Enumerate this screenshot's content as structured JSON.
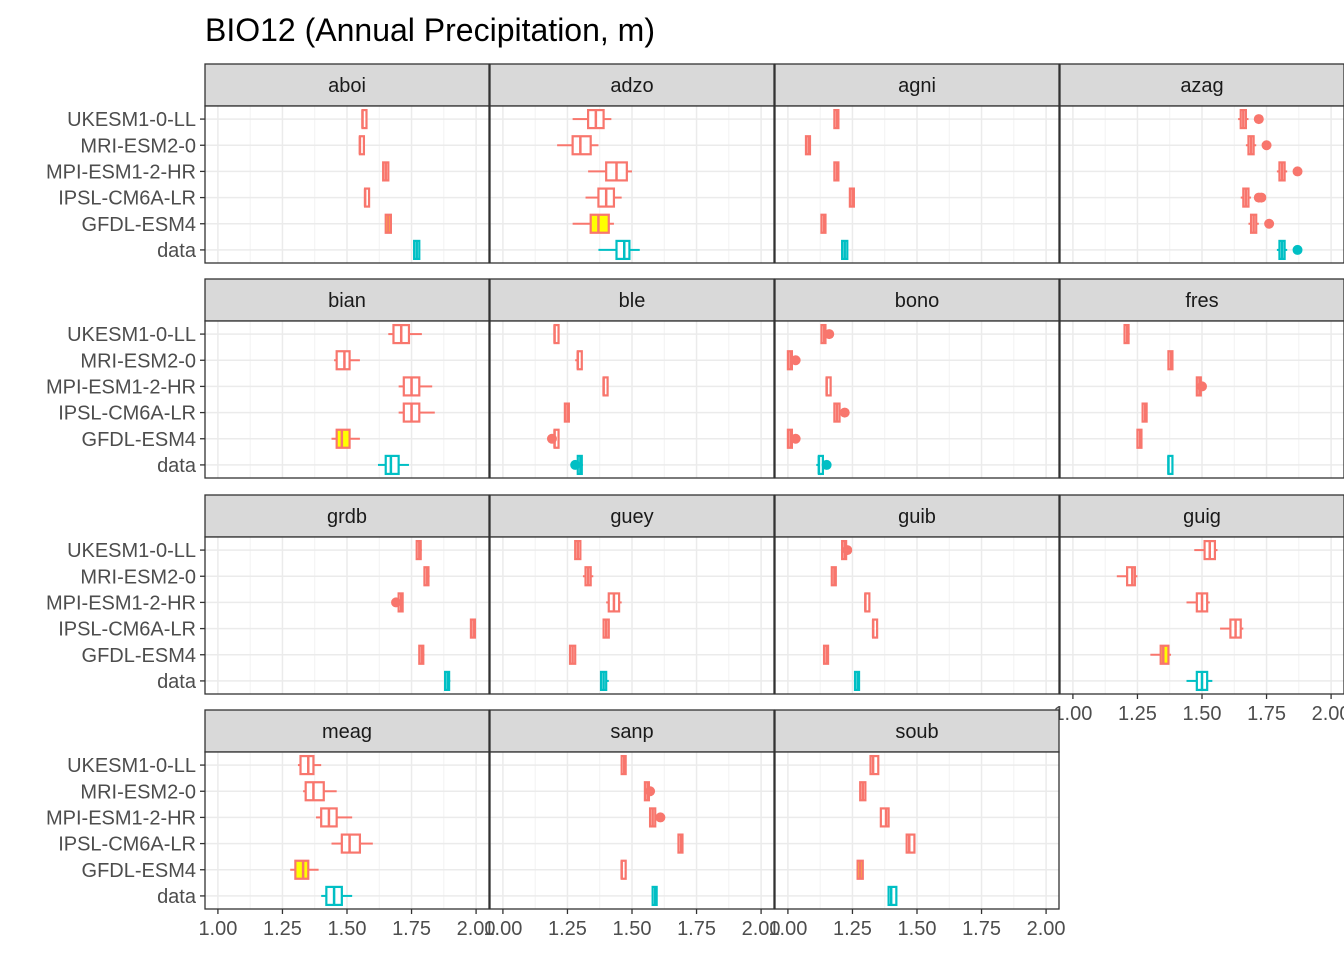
{
  "chart_data": {
    "type": "boxplot",
    "title": "BIO12 (Annual Precipitation, m)",
    "xlabel": "",
    "ylabel": "",
    "xlim": [
      0.95,
      2.05
    ],
    "xticks": [
      1.0,
      1.25,
      1.5,
      1.75,
      2.0
    ],
    "xtick_labels": [
      "1.00",
      "1.25",
      "1.50",
      "1.75",
      "2.00"
    ],
    "categories": [
      "UKESM1-0-LL",
      "MRI-ESM2-0",
      "MPI-ESM1-2-HR",
      "IPSL-CM6A-LR",
      "GFDL-ESM4",
      "data"
    ],
    "grid": true,
    "colors": {
      "model": "#F8766D",
      "data": "#00BFC4",
      "highlight": "#FFFF00"
    },
    "panels": [
      {
        "name": "aboi",
        "boxes": [
          [
            1.56,
            1.56,
            1.56,
            1.57,
            1.57
          ],
          [
            1.55,
            1.55,
            1.55,
            1.56,
            1.56
          ],
          [
            1.64,
            1.64,
            1.65,
            1.66,
            1.66
          ],
          [
            1.57,
            1.57,
            1.57,
            1.58,
            1.58
          ],
          [
            1.65,
            1.65,
            1.66,
            1.67,
            1.67
          ],
          [
            1.76,
            1.76,
            1.77,
            1.78,
            1.78
          ]
        ],
        "outliers": [
          [],
          [],
          [],
          [],
          [],
          []
        ],
        "highlight": [
          false,
          false,
          false,
          false,
          true,
          false
        ]
      },
      {
        "name": "adzo",
        "boxes": [
          [
            1.27,
            1.33,
            1.36,
            1.39,
            1.42
          ],
          [
            1.21,
            1.27,
            1.3,
            1.34,
            1.37
          ],
          [
            1.33,
            1.4,
            1.44,
            1.48,
            1.5
          ],
          [
            1.32,
            1.37,
            1.4,
            1.43,
            1.46
          ],
          [
            1.27,
            1.34,
            1.37,
            1.41,
            1.43
          ],
          [
            1.37,
            1.44,
            1.47,
            1.49,
            1.53
          ]
        ],
        "outliers": [
          [],
          [],
          [],
          [],
          [],
          []
        ],
        "highlight": [
          false,
          false,
          false,
          false,
          true,
          false
        ]
      },
      {
        "name": "agni",
        "boxes": [
          [
            1.18,
            1.18,
            1.19,
            1.19,
            1.19
          ],
          [
            1.07,
            1.07,
            1.08,
            1.08,
            1.08
          ],
          [
            1.18,
            1.18,
            1.19,
            1.19,
            1.19
          ],
          [
            1.24,
            1.24,
            1.25,
            1.25,
            1.25
          ],
          [
            1.13,
            1.13,
            1.14,
            1.14,
            1.14
          ],
          [
            1.21,
            1.21,
            1.22,
            1.23,
            1.23
          ]
        ],
        "outliers": [
          [],
          [],
          [],
          [],
          [],
          []
        ],
        "highlight": [
          false,
          false,
          false,
          false,
          false,
          false
        ]
      },
      {
        "name": "azag",
        "boxes": [
          [
            1.64,
            1.65,
            1.66,
            1.67,
            1.68
          ],
          [
            1.67,
            1.68,
            1.69,
            1.7,
            1.71
          ],
          [
            1.79,
            1.8,
            1.81,
            1.82,
            1.83
          ],
          [
            1.65,
            1.66,
            1.67,
            1.68,
            1.69
          ],
          [
            1.68,
            1.69,
            1.7,
            1.71,
            1.72
          ],
          [
            1.79,
            1.8,
            1.81,
            1.82,
            1.83
          ]
        ],
        "outliers": [
          [
            1.72
          ],
          [
            1.75
          ],
          [
            1.87
          ],
          [
            1.72,
            1.73
          ],
          [
            1.76
          ],
          [
            1.87
          ]
        ],
        "highlight": [
          false,
          false,
          false,
          false,
          false,
          false
        ]
      },
      {
        "name": "bian",
        "boxes": [
          [
            1.66,
            1.68,
            1.71,
            1.74,
            1.79
          ],
          [
            1.45,
            1.46,
            1.49,
            1.51,
            1.55
          ],
          [
            1.7,
            1.72,
            1.75,
            1.78,
            1.83
          ],
          [
            1.7,
            1.72,
            1.75,
            1.78,
            1.84
          ],
          [
            1.44,
            1.46,
            1.48,
            1.51,
            1.55
          ],
          [
            1.62,
            1.65,
            1.67,
            1.7,
            1.74
          ]
        ],
        "outliers": [
          [],
          [],
          [],
          [],
          [],
          []
        ],
        "highlight": [
          false,
          false,
          false,
          false,
          true,
          false
        ]
      },
      {
        "name": "ble",
        "boxes": [
          [
            1.2,
            1.2,
            1.2,
            1.2,
            1.2
          ],
          [
            1.28,
            1.29,
            1.29,
            1.29,
            1.3
          ],
          [
            1.39,
            1.39,
            1.39,
            1.4,
            1.4
          ],
          [
            1.24,
            1.24,
            1.25,
            1.25,
            1.25
          ],
          [
            1.19,
            1.2,
            1.2,
            1.2,
            1.21
          ],
          [
            1.29,
            1.29,
            1.3,
            1.3,
            1.31
          ]
        ],
        "outliers": [
          [],
          [],
          [],
          [],
          [
            1.19
          ],
          [
            1.28
          ]
        ],
        "highlight": [
          false,
          false,
          false,
          false,
          false,
          false
        ]
      },
      {
        "name": "bono",
        "boxes": [
          [
            1.13,
            1.13,
            1.14,
            1.14,
            1.14
          ],
          [
            1.0,
            1.0,
            1.01,
            1.01,
            1.02
          ],
          [
            1.15,
            1.15,
            1.15,
            1.16,
            1.16
          ],
          [
            1.18,
            1.18,
            1.19,
            1.2,
            1.2
          ],
          [
            1.0,
            1.0,
            1.01,
            1.01,
            1.01
          ],
          [
            1.11,
            1.12,
            1.12,
            1.13,
            1.13
          ]
        ],
        "outliers": [
          [
            1.16
          ],
          [
            1.03
          ],
          [],
          [
            1.22
          ],
          [
            1.03
          ],
          [
            1.15
          ]
        ],
        "highlight": [
          false,
          false,
          false,
          false,
          false,
          false
        ]
      },
      {
        "name": "fres",
        "boxes": [
          [
            1.2,
            1.2,
            1.21,
            1.21,
            1.22
          ],
          [
            1.37,
            1.37,
            1.38,
            1.38,
            1.38
          ],
          [
            1.48,
            1.48,
            1.49,
            1.49,
            1.5
          ],
          [
            1.27,
            1.27,
            1.28,
            1.28,
            1.28
          ],
          [
            1.25,
            1.25,
            1.26,
            1.26,
            1.26
          ],
          [
            1.37,
            1.37,
            1.37,
            1.38,
            1.38
          ]
        ],
        "outliers": [
          [],
          [],
          [
            1.5
          ],
          [],
          [],
          []
        ],
        "highlight": [
          false,
          false,
          false,
          false,
          false,
          false
        ]
      },
      {
        "name": "grdb",
        "boxes": [
          [
            1.77,
            1.77,
            1.78,
            1.78,
            1.79
          ],
          [
            1.8,
            1.8,
            1.81,
            1.81,
            1.82
          ],
          [
            1.7,
            1.7,
            1.71,
            1.71,
            1.71
          ],
          [
            1.98,
            1.98,
            1.99,
            1.99,
            2.0
          ],
          [
            1.78,
            1.78,
            1.79,
            1.79,
            1.8
          ],
          [
            1.88,
            1.88,
            1.89,
            1.89,
            1.9
          ]
        ],
        "outliers": [
          [],
          [],
          [
            1.69
          ],
          [],
          [],
          []
        ],
        "highlight": [
          false,
          false,
          false,
          false,
          false,
          false
        ]
      },
      {
        "name": "guey",
        "boxes": [
          [
            1.28,
            1.28,
            1.29,
            1.3,
            1.3
          ],
          [
            1.31,
            1.32,
            1.33,
            1.34,
            1.35
          ],
          [
            1.4,
            1.41,
            1.43,
            1.45,
            1.46
          ],
          [
            1.39,
            1.39,
            1.4,
            1.41,
            1.41
          ],
          [
            1.26,
            1.26,
            1.27,
            1.28,
            1.28
          ],
          [
            1.38,
            1.38,
            1.39,
            1.4,
            1.41
          ]
        ],
        "outliers": [
          [],
          [],
          [],
          [],
          [],
          []
        ],
        "highlight": [
          false,
          false,
          false,
          false,
          false,
          false
        ]
      },
      {
        "name": "guib",
        "boxes": [
          [
            1.21,
            1.21,
            1.22,
            1.22,
            1.22
          ],
          [
            1.17,
            1.17,
            1.18,
            1.18,
            1.18
          ],
          [
            1.3,
            1.3,
            1.3,
            1.3,
            1.31
          ],
          [
            1.33,
            1.33,
            1.33,
            1.34,
            1.34
          ],
          [
            1.14,
            1.14,
            1.15,
            1.15,
            1.15
          ],
          [
            1.26,
            1.26,
            1.27,
            1.27,
            1.27
          ]
        ],
        "outliers": [
          [
            1.23
          ],
          [],
          [],
          [],
          [],
          []
        ],
        "highlight": [
          false,
          false,
          false,
          false,
          false,
          false
        ]
      },
      {
        "name": "guig",
        "boxes": [
          [
            1.47,
            1.51,
            1.53,
            1.55,
            1.56
          ],
          [
            1.17,
            1.21,
            1.23,
            1.24,
            1.25
          ],
          [
            1.44,
            1.48,
            1.5,
            1.52,
            1.53
          ],
          [
            1.57,
            1.61,
            1.63,
            1.65,
            1.66
          ],
          [
            1.3,
            1.34,
            1.35,
            1.37,
            1.38
          ],
          [
            1.44,
            1.48,
            1.5,
            1.52,
            1.54
          ]
        ],
        "outliers": [
          [],
          [],
          [],
          [],
          [],
          []
        ],
        "highlight": [
          false,
          false,
          false,
          false,
          true,
          false
        ]
      },
      {
        "name": "meag",
        "boxes": [
          [
            1.31,
            1.32,
            1.35,
            1.37,
            1.4
          ],
          [
            1.33,
            1.34,
            1.37,
            1.41,
            1.46
          ],
          [
            1.38,
            1.4,
            1.43,
            1.46,
            1.52
          ],
          [
            1.44,
            1.48,
            1.51,
            1.55,
            1.6
          ],
          [
            1.28,
            1.3,
            1.33,
            1.35,
            1.39
          ],
          [
            1.4,
            1.42,
            1.45,
            1.48,
            1.52
          ]
        ],
        "outliers": [
          [],
          [],
          [],
          [],
          [],
          []
        ],
        "highlight": [
          false,
          false,
          false,
          false,
          true,
          false
        ]
      },
      {
        "name": "sanp",
        "boxes": [
          [
            1.46,
            1.46,
            1.47,
            1.47,
            1.47
          ],
          [
            1.55,
            1.55,
            1.56,
            1.56,
            1.57
          ],
          [
            1.57,
            1.57,
            1.58,
            1.59,
            1.6
          ],
          [
            1.68,
            1.68,
            1.69,
            1.69,
            1.69
          ],
          [
            1.46,
            1.46,
            1.46,
            1.47,
            1.47
          ],
          [
            1.58,
            1.58,
            1.59,
            1.59,
            1.59
          ]
        ],
        "outliers": [
          [],
          [
            1.57
          ],
          [
            1.61
          ],
          [],
          [],
          []
        ],
        "highlight": [
          false,
          false,
          false,
          false,
          false,
          false
        ]
      },
      {
        "name": "soub",
        "boxes": [
          [
            1.32,
            1.32,
            1.33,
            1.35,
            1.35
          ],
          [
            1.28,
            1.28,
            1.29,
            1.3,
            1.3
          ],
          [
            1.36,
            1.36,
            1.38,
            1.39,
            1.39
          ],
          [
            1.46,
            1.46,
            1.47,
            1.49,
            1.49
          ],
          [
            1.27,
            1.27,
            1.28,
            1.29,
            1.29
          ],
          [
            1.39,
            1.39,
            1.4,
            1.42,
            1.42
          ]
        ],
        "outliers": [
          [],
          [],
          [],
          [],
          [],
          []
        ],
        "highlight": [
          false,
          false,
          false,
          false,
          true,
          false
        ]
      }
    ]
  }
}
